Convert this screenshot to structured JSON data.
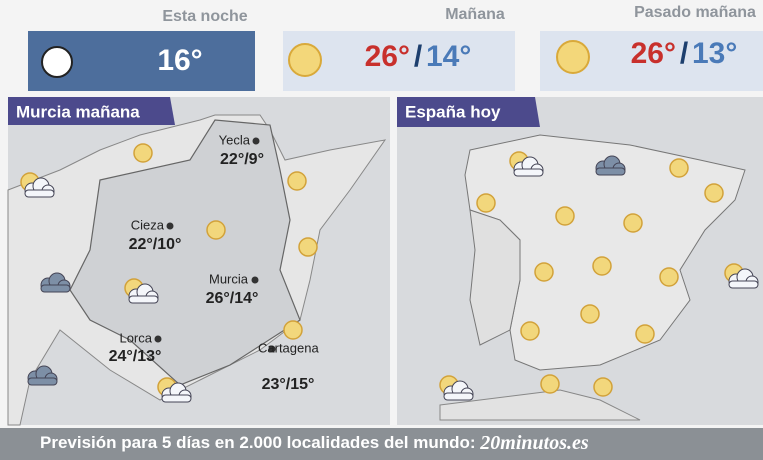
{
  "header": {
    "forecasts": [
      {
        "label": "Esta noche",
        "temp": "16°"
      },
      {
        "label": "Mañana",
        "high": "26°",
        "separator": "/",
        "low": "14°"
      },
      {
        "label": "Pasado mañana",
        "high": "26°",
        "separator": "/",
        "low": "13°"
      }
    ]
  },
  "murcia_map": {
    "title": "Murcia mañana",
    "cities": [
      {
        "name": "Yecla",
        "temps": "22°/9°"
      },
      {
        "name": "Cieza",
        "temps": "22°/10°"
      },
      {
        "name": "Murcia",
        "temps": "26°/14°"
      },
      {
        "name": "Lorca",
        "temps": "24°/13°"
      },
      {
        "name": "Cartagena",
        "temps": "23°/15°"
      }
    ]
  },
  "spain_map": {
    "title": "España hoy"
  },
  "footer": {
    "text": "Previsión para 5 días en 2.000 localidades del mundo: ",
    "brand": "20minutos.es"
  }
}
